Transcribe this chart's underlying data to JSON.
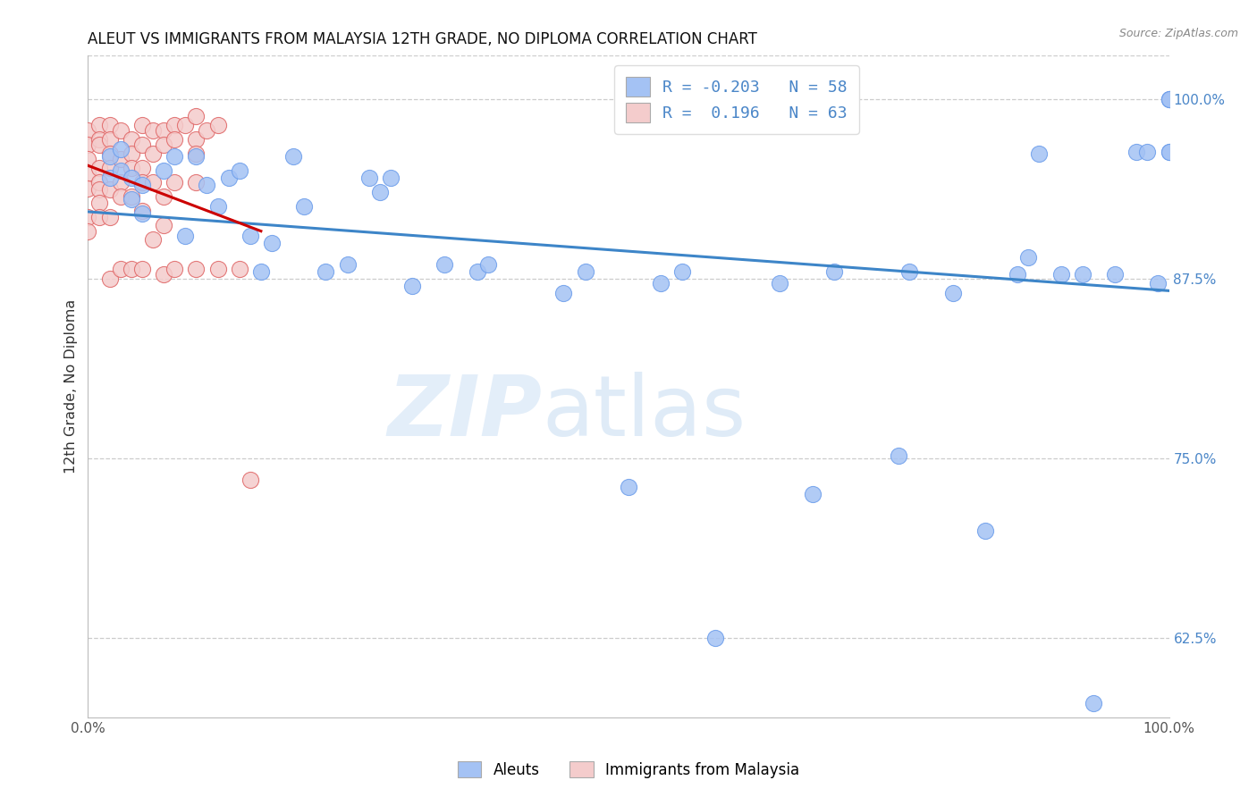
{
  "title": "ALEUT VS IMMIGRANTS FROM MALAYSIA 12TH GRADE, NO DIPLOMA CORRELATION CHART",
  "source": "Source: ZipAtlas.com",
  "ylabel": "12th Grade, No Diploma",
  "x_min": 0.0,
  "x_max": 1.0,
  "y_min": 0.57,
  "y_max": 1.03,
  "color_blue": "#a4c2f4",
  "color_pink": "#f4cccc",
  "edge_blue": "#6d9eeb",
  "edge_pink": "#e06666",
  "line_blue": "#3d85c8",
  "line_pink": "#cc0000",
  "watermark_zip": "ZIP",
  "watermark_atlas": "atlas",
  "aleuts_x": [
    0.02,
    0.02,
    0.03,
    0.03,
    0.04,
    0.04,
    0.05,
    0.05,
    0.07,
    0.08,
    0.09,
    0.1,
    0.11,
    0.12,
    0.13,
    0.14,
    0.15,
    0.16,
    0.17,
    0.19,
    0.2,
    0.22,
    0.24,
    0.26,
    0.27,
    0.28,
    0.3,
    0.33,
    0.36,
    0.37,
    0.44,
    0.46,
    0.5,
    0.53,
    0.55,
    0.58,
    0.64,
    0.67,
    0.69,
    0.75,
    0.76,
    0.8,
    0.83,
    0.86,
    0.87,
    0.88,
    0.9,
    0.92,
    0.93,
    0.95,
    0.97,
    0.98,
    0.99,
    1.0,
    1.0,
    1.0,
    1.0,
    1.0
  ],
  "aleuts_y": [
    0.96,
    0.945,
    0.965,
    0.95,
    0.945,
    0.93,
    0.94,
    0.92,
    0.95,
    0.96,
    0.905,
    0.96,
    0.94,
    0.925,
    0.945,
    0.95,
    0.905,
    0.88,
    0.9,
    0.96,
    0.925,
    0.88,
    0.885,
    0.945,
    0.935,
    0.945,
    0.87,
    0.885,
    0.88,
    0.885,
    0.865,
    0.88,
    0.73,
    0.872,
    0.88,
    0.625,
    0.872,
    0.725,
    0.88,
    0.752,
    0.88,
    0.865,
    0.7,
    0.878,
    0.89,
    0.962,
    0.878,
    0.878,
    0.58,
    0.878,
    0.963,
    0.963,
    0.872,
    0.963,
    0.963,
    1.0,
    1.0,
    1.0
  ],
  "malaysia_x": [
    0.0,
    0.0,
    0.0,
    0.0,
    0.0,
    0.0,
    0.0,
    0.01,
    0.01,
    0.01,
    0.01,
    0.01,
    0.01,
    0.01,
    0.01,
    0.02,
    0.02,
    0.02,
    0.02,
    0.02,
    0.02,
    0.02,
    0.03,
    0.03,
    0.03,
    0.03,
    0.03,
    0.04,
    0.04,
    0.04,
    0.04,
    0.04,
    0.05,
    0.05,
    0.05,
    0.05,
    0.05,
    0.05,
    0.06,
    0.06,
    0.06,
    0.06,
    0.07,
    0.07,
    0.07,
    0.07,
    0.07,
    0.08,
    0.08,
    0.08,
    0.08,
    0.09,
    0.1,
    0.1,
    0.1,
    0.1,
    0.1,
    0.11,
    0.12,
    0.12,
    0.14,
    0.15
  ],
  "malaysia_y": [
    0.978,
    0.968,
    0.958,
    0.948,
    0.938,
    0.918,
    0.908,
    0.982,
    0.972,
    0.968,
    0.952,
    0.942,
    0.937,
    0.928,
    0.918,
    0.982,
    0.972,
    0.962,
    0.952,
    0.937,
    0.918,
    0.875,
    0.978,
    0.958,
    0.942,
    0.932,
    0.882,
    0.972,
    0.962,
    0.952,
    0.932,
    0.882,
    0.982,
    0.968,
    0.952,
    0.942,
    0.922,
    0.882,
    0.978,
    0.962,
    0.942,
    0.902,
    0.978,
    0.968,
    0.932,
    0.912,
    0.878,
    0.982,
    0.972,
    0.942,
    0.882,
    0.982,
    0.988,
    0.972,
    0.962,
    0.942,
    0.882,
    0.978,
    0.982,
    0.882,
    0.882,
    0.735
  ]
}
